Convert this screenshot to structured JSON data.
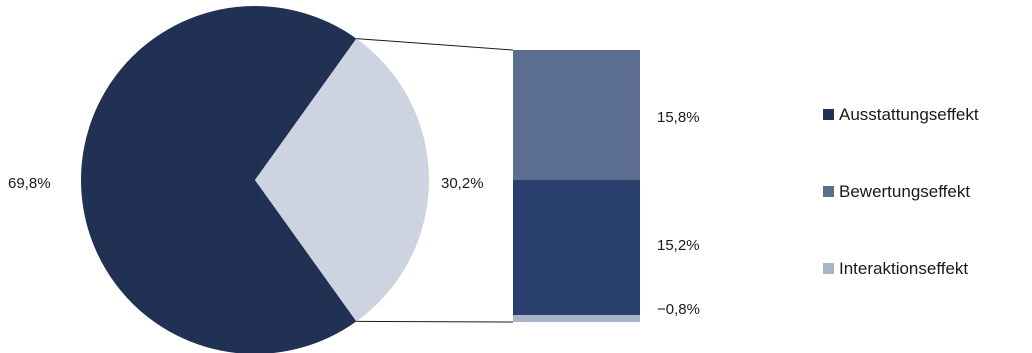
{
  "chart_data": {
    "type": "bar-of-pie",
    "pie": {
      "slices": [
        {
          "label": "69,8%",
          "value": 69.8,
          "color": "#213154"
        },
        {
          "label": "30,2%",
          "value": 30.2,
          "color": "#cdd3e0"
        }
      ]
    },
    "bar": {
      "segments": [
        {
          "label": "15,8%",
          "value": 15.8,
          "color": "#283f6d"
        },
        {
          "label": "15,2%",
          "value": 15.2,
          "color": "#5b6e8f"
        },
        {
          "label": "−0,8%",
          "value": -0.8,
          "color": "#a9b4c8"
        }
      ]
    },
    "legend": {
      "placement": "right",
      "items": [
        {
          "label": "Ausstattungseffekt",
          "color": "#213154"
        },
        {
          "label": "Bewertungseffekt",
          "color": "#5b6e8f"
        },
        {
          "label": "Interaktionseffekt",
          "color": "#a9b4c8"
        }
      ]
    }
  }
}
